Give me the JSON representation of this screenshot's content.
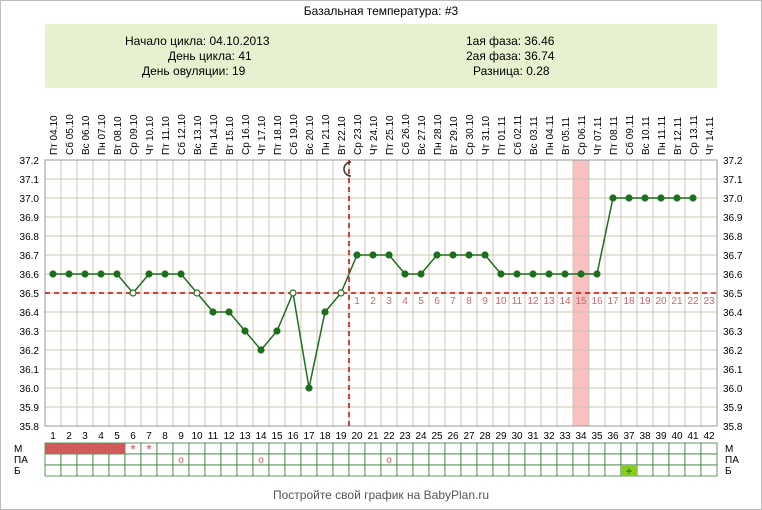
{
  "title": "Базальная температура: #3",
  "info": {
    "cycle_start": "Начало цикла: 04.10.2013",
    "cycle_day": "День цикла: 41",
    "ovulation_day": "День овуляции: 19",
    "phase1": "1ая фаза: 36.46",
    "phase2": "2ая фаза: 36.74",
    "difference": "Разница: 0.28"
  },
  "footer": "Постройте свой график на BabyPlan.ru",
  "colors": {
    "line": "#1e6e1e",
    "point": "#1e6e1e",
    "coverline": "#cc0000",
    "ovulation_line": "#cc0000",
    "grid": "#c8c8b4",
    "highlight": "#f8c0c0",
    "phase_numbers": "#cc6666",
    "menstruation": "#d05a5a",
    "b_marker": "#88cc22"
  },
  "chart_data": {
    "type": "line",
    "title": "Базальная температура: #3",
    "x_days": [
      1,
      2,
      3,
      4,
      5,
      6,
      7,
      8,
      9,
      10,
      11,
      12,
      13,
      14,
      15,
      16,
      17,
      18,
      19,
      20,
      21,
      22,
      23,
      24,
      25,
      26,
      27,
      28,
      29,
      30,
      31,
      32,
      33,
      34,
      35,
      36,
      37,
      38,
      39,
      40,
      41,
      42
    ],
    "dates": [
      "Пт 04.10",
      "Сб 05.10",
      "Вс 06.10",
      "Пн 07.10",
      "Вт 08.10",
      "Ср 09.10",
      "Чт 10.10",
      "Пт 11.10",
      "Сб 12.10",
      "Вс 13.10",
      "Пн 14.10",
      "Вт 15.10",
      "Ср 16.10",
      "Чт 17.10",
      "Пт 18.10",
      "Сб 19.10",
      "Вс 20.10",
      "Пн 21.10",
      "Вт 22.10",
      "Ср 23.10",
      "Чт 24.10",
      "Пт 25.10",
      "Сб 26.10",
      "Вс 27.10",
      "Пн 28.10",
      "Вт 29.10",
      "Ср 30.10",
      "Чт 31.10",
      "Пт 01.11",
      "Сб 02.11",
      "Вс 03.11",
      "Пн 04.11",
      "Вт 05.11",
      "Ср 06.11",
      "Чт 07.11",
      "Пт 08.11",
      "Сб 09.11",
      "Вс 10.11",
      "Пн 11.11",
      "Вт 12.11",
      "Ср 13.11",
      "Чт 14.11"
    ],
    "temperatures": [
      36.6,
      36.6,
      36.6,
      36.6,
      36.6,
      36.5,
      36.6,
      36.6,
      36.6,
      36.5,
      36.4,
      36.4,
      36.3,
      36.2,
      36.3,
      36.5,
      36.0,
      36.4,
      36.5,
      36.7,
      36.7,
      36.7,
      36.6,
      36.6,
      36.7,
      36.7,
      36.7,
      36.7,
      36.6,
      36.6,
      36.6,
      36.6,
      36.6,
      36.6,
      36.6,
      37.0,
      37.0,
      37.0,
      37.0,
      37.0,
      37.0,
      null
    ],
    "hollow_points_days": [
      6,
      10,
      16,
      19
    ],
    "y_ticks": [
      "35.8",
      "35.9",
      "36.0",
      "36.1",
      "36.2",
      "36.3",
      "36.4",
      "36.5",
      "36.6",
      "36.7",
      "36.8",
      "36.9",
      "37.0",
      "37.1",
      "37.2"
    ],
    "ylim": [
      35.8,
      37.2
    ],
    "coverline": 36.5,
    "ovulation_day": 19,
    "ovulation_icon": "moon-icon",
    "highlight_day": 34,
    "phase2_labels": [
      "1",
      "2",
      "3",
      "4",
      "5",
      "6",
      "7",
      "8",
      "9",
      "10",
      "11",
      "12",
      "13",
      "14",
      "15",
      "16",
      "17",
      "18",
      "19",
      "20",
      "21",
      "22",
      "23"
    ],
    "grid": true
  },
  "bottom_rows": {
    "labels": [
      "М",
      "ПА",
      "Б"
    ],
    "m_filled_days": [
      1,
      2,
      3,
      4,
      5
    ],
    "m_star_days": [
      6,
      7
    ],
    "m_star_symbol": "*",
    "pa_circle_days": [
      9,
      14,
      22
    ],
    "pa_circle_symbol": "o",
    "b_marker_days": [
      37
    ],
    "b_marker_symbol": "+"
  }
}
